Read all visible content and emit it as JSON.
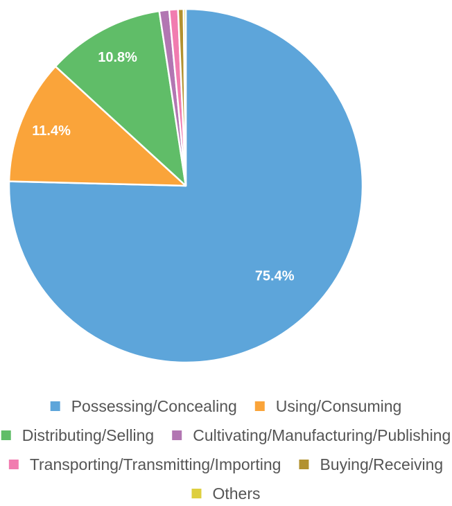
{
  "chart_data": {
    "type": "pie",
    "slices": [
      {
        "name": "Possessing/Concealing",
        "value": 75.4,
        "label": "75.4%",
        "color": "#5DA5DA"
      },
      {
        "name": "Using/Consuming",
        "value": 11.4,
        "label": "11.4%",
        "color": "#FAA43A"
      },
      {
        "name": "Distributing/Selling",
        "value": 10.8,
        "label": "10.8%",
        "color": "#60BD68"
      },
      {
        "name": "Cultivating/Manufacturing/Publishing",
        "value": 0.9,
        "label": "",
        "color": "#B276B2"
      },
      {
        "name": "Transporting/Transmitting/Importing",
        "value": 0.8,
        "label": "",
        "color": "#F17CB0"
      },
      {
        "name": "Buying/Receiving",
        "value": 0.5,
        "label": "",
        "color": "#B2912F"
      },
      {
        "name": "Others",
        "value": 0.2,
        "label": "",
        "color": "#DECF3F"
      }
    ],
    "legend_position": "bottom",
    "legend_rows": [
      [
        "Possessing/Concealing",
        "Using/Consuming"
      ],
      [
        "Distributing/Selling",
        "Cultivating/Manufacturing/Publishing"
      ],
      [
        "Transporting/Transmitting/Importing",
        "Buying/Receiving"
      ],
      [
        "Others"
      ]
    ]
  }
}
